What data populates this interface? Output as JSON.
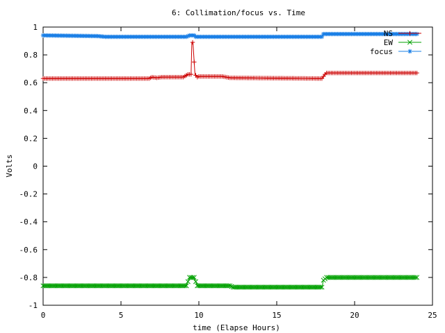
{
  "chart_data": {
    "type": "line",
    "title": "6: Collimation/focus vs. Time",
    "xlabel": "time (Elapse Hours)",
    "ylabel": "Volts",
    "xlim": [
      0,
      25
    ],
    "ylim": [
      -1,
      1
    ],
    "xticks": [
      "0",
      "5",
      "10",
      "15",
      "20",
      "25"
    ],
    "yticks": [
      "-1",
      "-0.8",
      "-0.6",
      "-0.4",
      "-0.2",
      "0",
      "0.2",
      "0.4",
      "0.6",
      "0.8",
      "1"
    ],
    "grid": false,
    "legend_position": "top-right",
    "series": [
      {
        "name": "NS",
        "color": "#cc0000",
        "marker": "plus",
        "points": [
          [
            0,
            0.63
          ],
          [
            6.8,
            0.63
          ],
          [
            7.0,
            0.64
          ],
          [
            7.3,
            0.635
          ],
          [
            7.6,
            0.64
          ],
          [
            9.0,
            0.64
          ],
          [
            9.3,
            0.66
          ],
          [
            9.5,
            0.66
          ],
          [
            9.55,
            0.89
          ],
          [
            9.62,
            0.89
          ],
          [
            9.75,
            0.66
          ],
          [
            9.9,
            0.64
          ],
          [
            10.0,
            0.645
          ],
          [
            11.5,
            0.645
          ],
          [
            12.0,
            0.635
          ],
          [
            17.9,
            0.63
          ],
          [
            18.1,
            0.66
          ],
          [
            18.2,
            0.67
          ],
          [
            24.0,
            0.67
          ]
        ]
      },
      {
        "name": "EW",
        "color": "#00a000",
        "marker": "cross",
        "points": [
          [
            0,
            -0.86
          ],
          [
            9.2,
            -0.86
          ],
          [
            9.4,
            -0.8
          ],
          [
            9.7,
            -0.8
          ],
          [
            9.9,
            -0.86
          ],
          [
            12.0,
            -0.86
          ],
          [
            12.2,
            -0.87
          ],
          [
            17.9,
            -0.87
          ],
          [
            18.0,
            -0.82
          ],
          [
            18.2,
            -0.8
          ],
          [
            24.0,
            -0.8
          ]
        ]
      },
      {
        "name": "focus",
        "color": "#1a7fe6",
        "marker": "star",
        "points": [
          [
            0,
            0.94
          ],
          [
            3.5,
            0.935
          ],
          [
            4.0,
            0.93
          ],
          [
            9.2,
            0.93
          ],
          [
            9.4,
            0.94
          ],
          [
            9.7,
            0.94
          ],
          [
            9.8,
            0.93
          ],
          [
            17.9,
            0.93
          ],
          [
            18.0,
            0.95
          ],
          [
            24.0,
            0.95
          ]
        ]
      }
    ]
  }
}
